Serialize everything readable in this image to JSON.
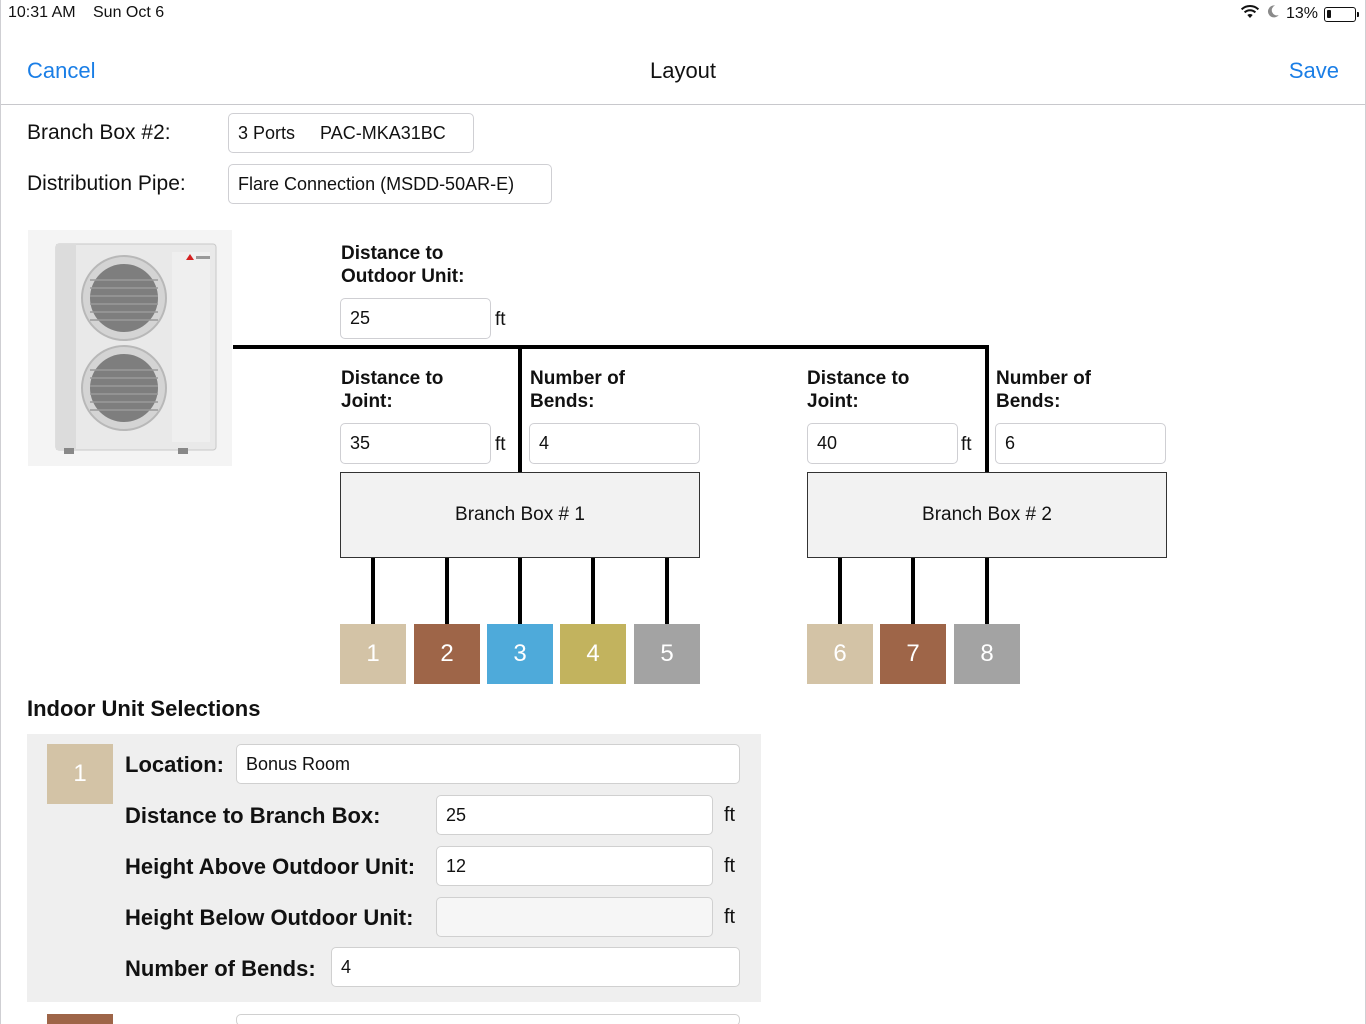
{
  "status_bar": {
    "time": "10:31 AM",
    "date": "Sun Oct 6",
    "battery_percent": "13%",
    "battery_level": 0.13,
    "icons": [
      "wifi-icon",
      "moon-icon",
      "battery-icon"
    ]
  },
  "nav": {
    "cancel_label": "Cancel",
    "title": "Layout",
    "save_label": "Save",
    "accent_color": "#1a7ee6"
  },
  "config": {
    "branch_box_label": "Branch Box #2:",
    "branch_box_value": "3 Ports     PAC-MKA31BC",
    "distribution_pipe_label": "Distribution Pipe:",
    "distribution_pipe_value": "Flare Connection (MSDD-50AR-E)"
  },
  "diagram": {
    "outdoor_unit_image": "outdoor-unit-image",
    "outdoor": {
      "label_line1": "Distance to",
      "label_line2": "Outdoor Unit:",
      "value": "25",
      "unit": "ft"
    },
    "branch1": {
      "joint_label_line1": "Distance to",
      "joint_label_line2": "Joint:",
      "joint_value": "35",
      "joint_unit": "ft",
      "bends_label_line1": "Number of",
      "bends_label_line2": "Bends:",
      "bends_value": "4",
      "box_label": "Branch Box # 1"
    },
    "branch2": {
      "joint_label_line1": "Distance to",
      "joint_label_line2": "Joint:",
      "joint_value": "40",
      "joint_unit": "ft",
      "bends_label_line1": "Number of",
      "bends_label_line2": "Bends:",
      "bends_value": "6",
      "box_label": "Branch Box # 2"
    },
    "ports": [
      {
        "label": "1",
        "color": "#d3c3a6"
      },
      {
        "label": "2",
        "color": "#9e6548"
      },
      {
        "label": "3",
        "color": "#4eaada"
      },
      {
        "label": "4",
        "color": "#c2b35e"
      },
      {
        "label": "5",
        "color": "#a3a3a3"
      },
      {
        "label": "6",
        "color": "#d3c3a6"
      },
      {
        "label": "7",
        "color": "#9e6548"
      },
      {
        "label": "8",
        "color": "#a3a3a3"
      }
    ]
  },
  "indoor": {
    "section_title": "Indoor Unit Selections",
    "unit1": {
      "badge": "1",
      "badge_color": "#d3c3a6",
      "location_label": "Location:",
      "location_value": "Bonus Room",
      "distance_label": "Distance to Branch Box:",
      "distance_value": "25",
      "height_above_label": "Height Above Outdoor Unit:",
      "height_above_value": "12",
      "height_below_label": "Height Below Outdoor Unit:",
      "height_below_value": "",
      "bends_label": "Number of Bends:",
      "bends_value": "4",
      "unit": "ft"
    },
    "unit2_badge_color": "#9e6548"
  }
}
